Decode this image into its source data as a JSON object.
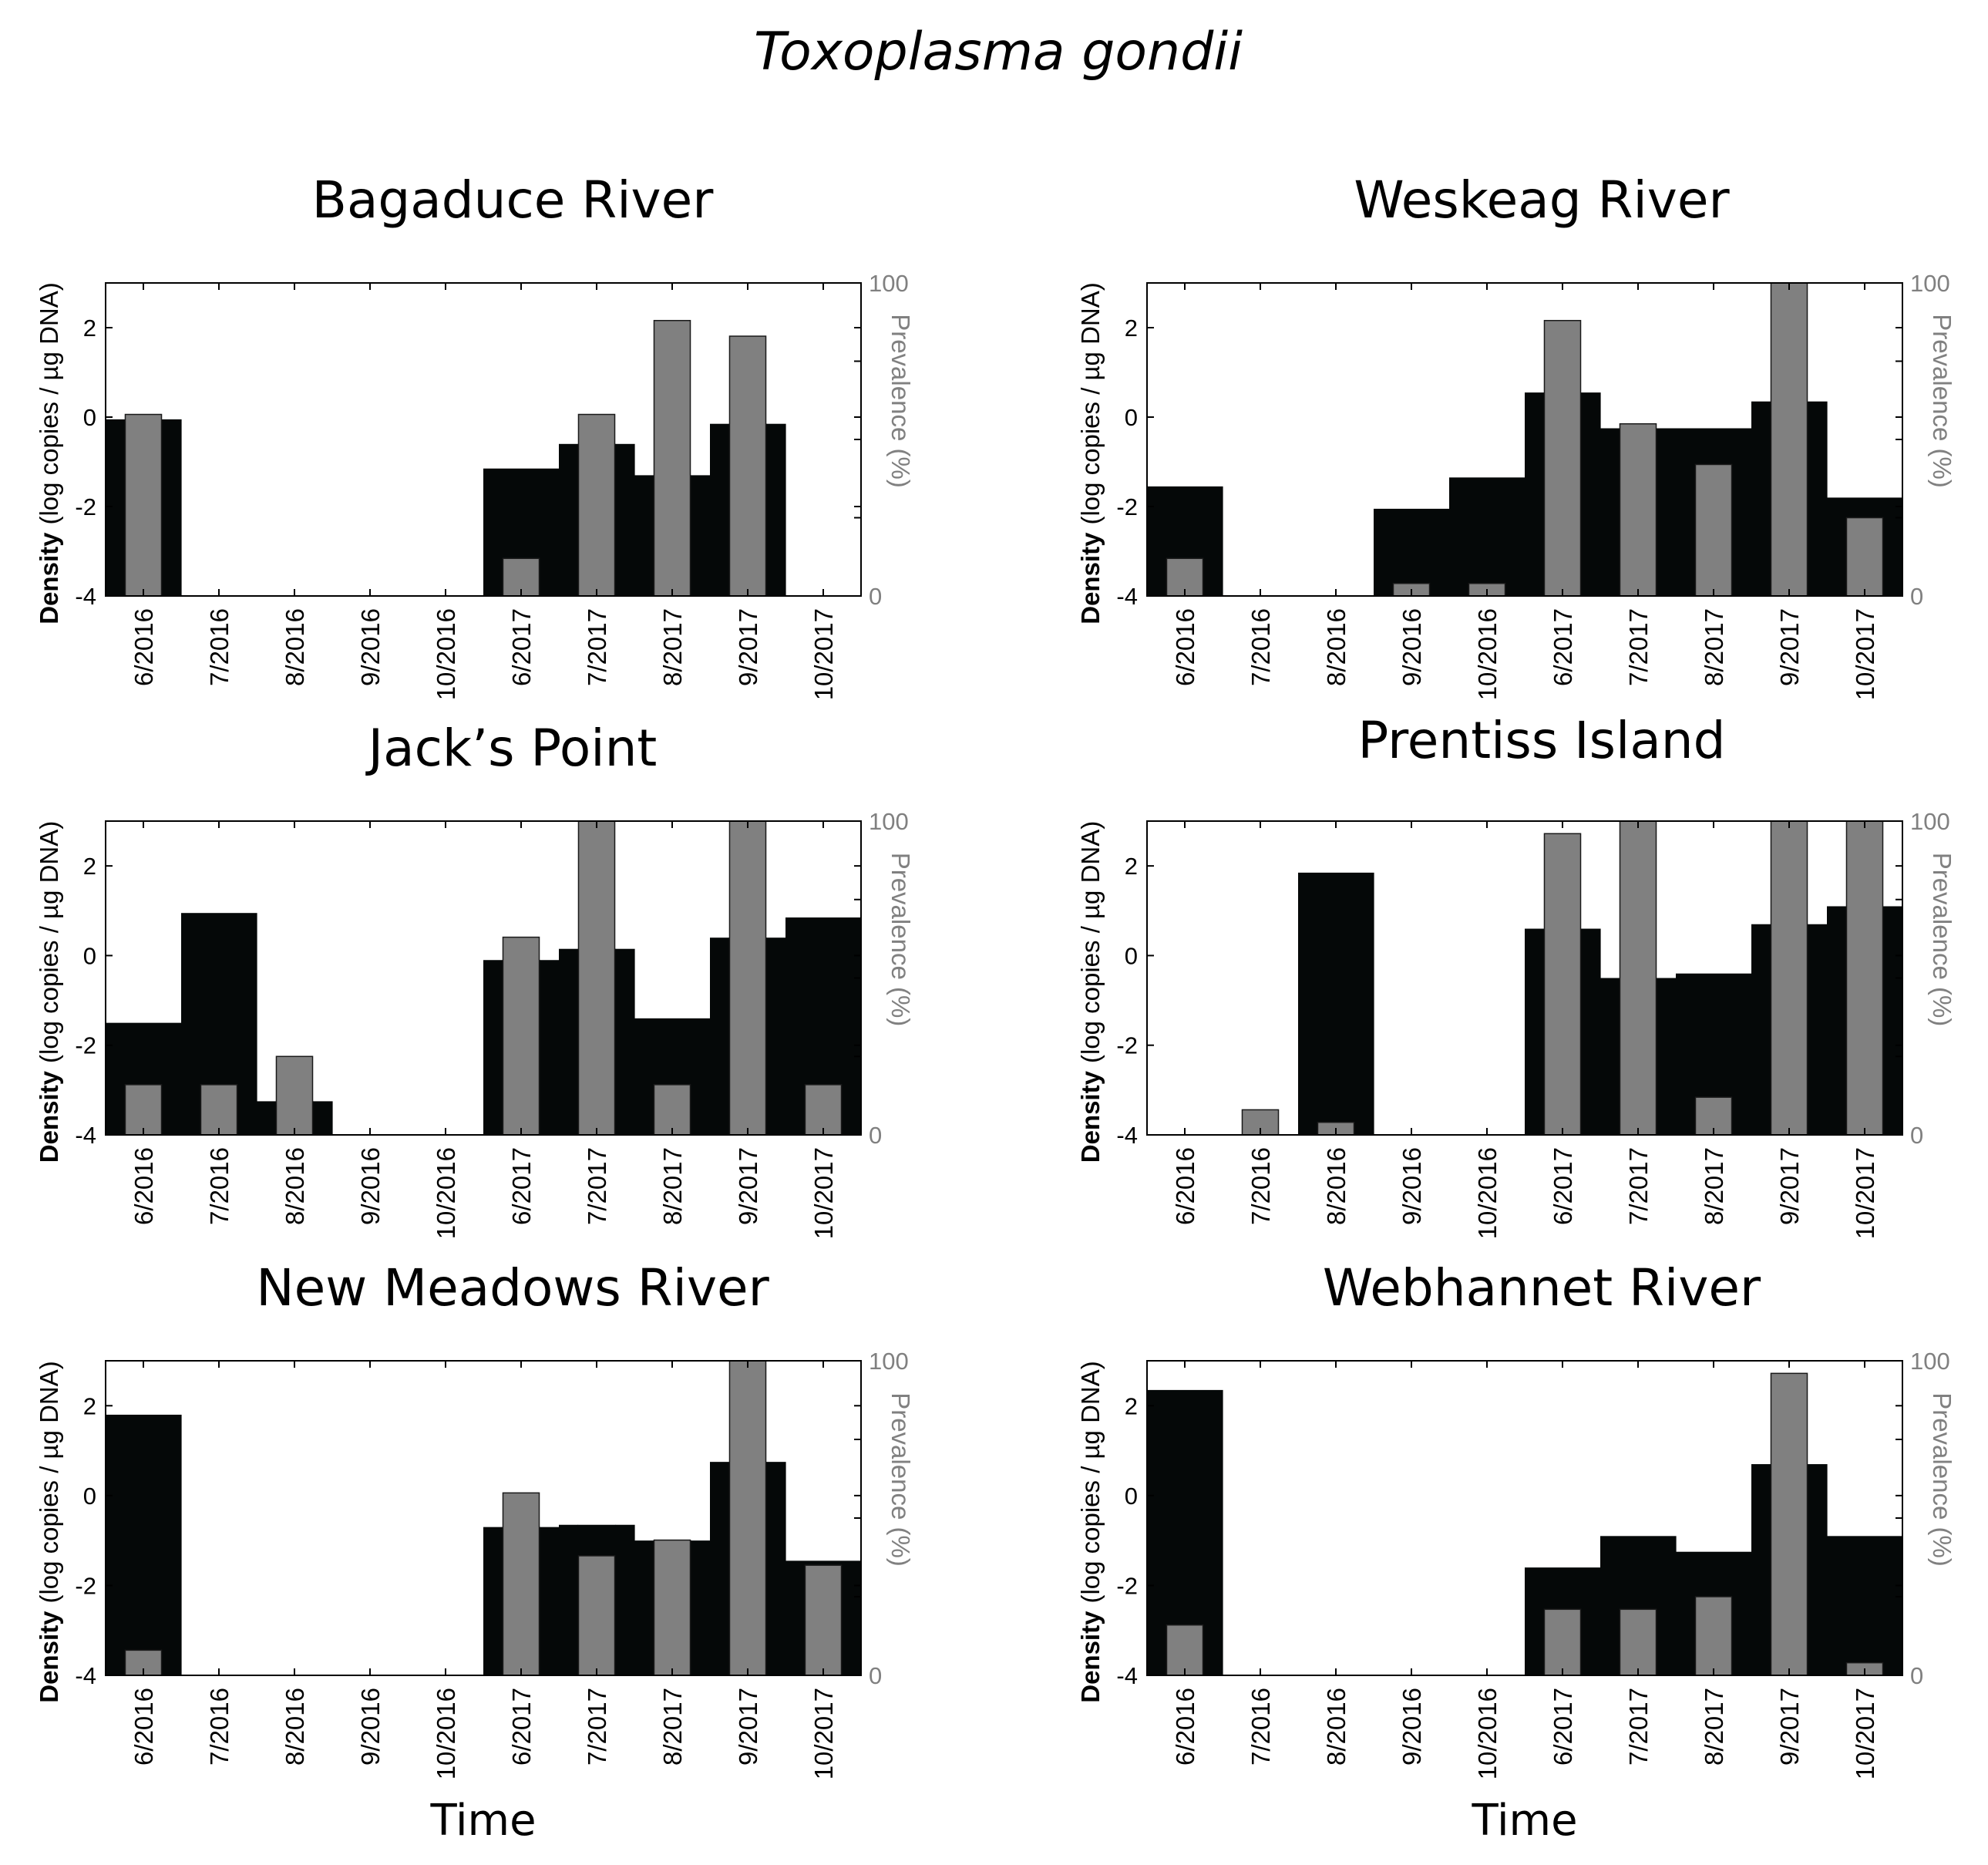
{
  "figure_title": "Toxoplasma gondii",
  "x_axis_label": "Time",
  "y_axis_label_bold": "Density",
  "y_axis_label_rest": "(log copies / µg DNA)",
  "y2_axis_label": "Prevalence (%)",
  "colors": {
    "density_bar": "#050808",
    "prevalence_bar": "#808080",
    "axis": "#000000",
    "secondary_axis_text": "#808080"
  },
  "chart_data": [
    {
      "type": "bar",
      "title": "Bagaduce River",
      "xlabel": "",
      "ylabel": "Density (log copies / µg DNA)",
      "y2label": "Prevalence (%)",
      "categories": [
        "6/2016",
        "7/2016",
        "8/2016",
        "9/2016",
        "10/2016",
        "6/2017",
        "7/2017",
        "8/2017",
        "9/2017",
        "10/2017"
      ],
      "ylim": [
        -4,
        3
      ],
      "y_ticks": [
        -4,
        -2,
        0,
        2
      ],
      "y2lim": [
        0,
        100
      ],
      "y2_ticks": [
        0,
        100
      ],
      "series": [
        {
          "name": "Density",
          "axis": "left",
          "x_start": [
            0.5,
            1.5,
            2.5,
            3.5,
            4.5,
            5.5,
            6.5,
            7.5,
            8.5,
            9.5
          ],
          "x_end": [
            1.5,
            2.5,
            3.5,
            4.5,
            5.5,
            6.5,
            7.5,
            8.5,
            9.5,
            10.5
          ],
          "values": [
            -0.05,
            null,
            null,
            null,
            null,
            -1.15,
            -0.6,
            -1.3,
            -0.15,
            null
          ],
          "step_change": [
            [
              1,
              -0.05
            ],
            [
              6,
              -1.15
            ],
            [
              7,
              -0.6
            ],
            [
              8,
              -1.3
            ],
            [
              9,
              -0.15
            ]
          ]
        },
        {
          "name": "Prevalence",
          "axis": "right",
          "x": [
            1,
            6,
            7,
            8,
            9
          ],
          "values": [
            58,
            12,
            58,
            88,
            83
          ]
        }
      ],
      "density_segments": [
        [
          0.5,
          1.0,
          -0.05
        ],
        [
          1.0,
          1.5,
          -0.05
        ],
        [
          5.5,
          6.5,
          -1.15
        ],
        [
          6.5,
          6.75,
          -0.6
        ],
        [
          6.75,
          7.25,
          -0.6
        ],
        [
          7.25,
          7.5,
          -0.6
        ],
        [
          7.5,
          7.75,
          -1.3
        ],
        [
          7.75,
          8.25,
          -1.3
        ],
        [
          8.25,
          8.5,
          -1.3
        ],
        [
          8.5,
          8.75,
          -0.15
        ],
        [
          8.75,
          9.25,
          -0.15
        ],
        [
          9.25,
          9.5,
          -0.15
        ]
      ]
    },
    {
      "type": "bar",
      "title": "Weskeag River",
      "xlabel": "",
      "ylabel": "Density (log copies / µg DNA)",
      "y2label": "Prevalence (%)",
      "categories": [
        "6/2016",
        "7/2016",
        "8/2016",
        "9/2016",
        "10/2016",
        "6/2017",
        "7/2017",
        "8/2017",
        "9/2017",
        "10/2017"
      ],
      "ylim": [
        -4,
        3
      ],
      "y_ticks": [
        -4,
        -2,
        0,
        2
      ],
      "y2lim": [
        0,
        100
      ],
      "y2_ticks": [
        0,
        100
      ],
      "series": [
        {
          "name": "Prevalence",
          "axis": "right",
          "x": [
            1,
            4,
            5,
            6,
            7,
            8,
            9,
            10
          ],
          "values": [
            12,
            4,
            4,
            88,
            55,
            42,
            100,
            25
          ]
        }
      ],
      "density_segments": [
        [
          0.5,
          1.5,
          -1.55
        ],
        [
          3.5,
          4.5,
          -2.05
        ],
        [
          4.5,
          5.5,
          -1.35
        ],
        [
          5.5,
          6.0,
          0.55
        ],
        [
          6.0,
          6.5,
          0.55
        ],
        [
          6.5,
          7.0,
          -0.25
        ],
        [
          7.0,
          7.5,
          -0.25
        ],
        [
          7.5,
          8.0,
          -0.25
        ],
        [
          8.0,
          8.5,
          -0.25
        ],
        [
          8.5,
          9.0,
          0.35
        ],
        [
          9.0,
          9.5,
          0.35
        ],
        [
          9.5,
          10.5,
          -1.8
        ]
      ]
    },
    {
      "type": "bar",
      "title": "Jack’s  Point",
      "xlabel": "",
      "ylabel": "Density (log copies / µg DNA)",
      "y2label": "Prevalence (%)",
      "categories": [
        "6/2016",
        "7/2016",
        "8/2016",
        "9/2016",
        "10/2016",
        "6/2017",
        "7/2017",
        "8/2017",
        "9/2017",
        "10/2017"
      ],
      "ylim": [
        -4,
        3
      ],
      "y_ticks": [
        -4,
        -2,
        0,
        2
      ],
      "y2lim": [
        0,
        100
      ],
      "y2_ticks": [
        0,
        100
      ],
      "series": [
        {
          "name": "Prevalence",
          "axis": "right",
          "x": [
            1,
            2,
            3,
            6,
            7,
            8,
            9,
            10
          ],
          "values": [
            16,
            16,
            25,
            63,
            100,
            16,
            100,
            16
          ]
        }
      ],
      "density_segments": [
        [
          0.5,
          1.5,
          -1.5
        ],
        [
          1.5,
          2.5,
          0.95
        ],
        [
          2.5,
          2.75,
          -3.25
        ],
        [
          2.75,
          3.25,
          -3.25
        ],
        [
          3.25,
          3.5,
          -3.25
        ],
        [
          5.5,
          5.75,
          -0.1
        ],
        [
          5.75,
          6.25,
          -0.1
        ],
        [
          6.25,
          6.5,
          -0.1
        ],
        [
          6.5,
          6.75,
          0.15
        ],
        [
          6.75,
          7.25,
          0.15
        ],
        [
          7.25,
          7.5,
          0.15
        ],
        [
          7.5,
          8.5,
          -1.4
        ],
        [
          8.5,
          8.75,
          0.4
        ],
        [
          8.75,
          9.25,
          0.4
        ],
        [
          9.25,
          9.5,
          0.4
        ],
        [
          9.5,
          10.5,
          0.85
        ]
      ]
    },
    {
      "type": "bar",
      "title": "Prentiss Island",
      "xlabel": "",
      "ylabel": "Density (log copies / µg DNA)",
      "y2label": "Prevalence (%)",
      "categories": [
        "6/2016",
        "7/2016",
        "8/2016",
        "9/2016",
        "10/2016",
        "6/2017",
        "7/2017",
        "8/2017",
        "9/2017",
        "10/2017"
      ],
      "ylim": [
        -4,
        3
      ],
      "y_ticks": [
        -4,
        -2,
        0,
        2
      ],
      "y2lim": [
        0,
        100
      ],
      "y2_ticks": [
        0,
        100
      ],
      "series": [
        {
          "name": "Prevalence",
          "axis": "right",
          "x": [
            2,
            3,
            6,
            7,
            8,
            9,
            10
          ],
          "values": [
            8,
            4,
            96,
            100,
            12,
            100,
            100
          ]
        }
      ],
      "density_segments": [
        [
          2.5,
          3.5,
          1.85
        ],
        [
          5.5,
          6.0,
          0.6
        ],
        [
          6.0,
          6.5,
          0.6
        ],
        [
          6.5,
          7.0,
          -0.5
        ],
        [
          7.0,
          7.5,
          -0.5
        ],
        [
          7.5,
          8.5,
          -0.4
        ],
        [
          8.5,
          9.0,
          0.7
        ],
        [
          9.0,
          9.5,
          0.7
        ],
        [
          9.5,
          10.0,
          1.1
        ],
        [
          10.0,
          10.5,
          1.1
        ]
      ]
    },
    {
      "type": "bar",
      "title": "New  Meadows River",
      "xlabel": "Time",
      "ylabel": "Density (log copies / µg DNA)",
      "y2label": "Prevalence (%)",
      "categories": [
        "6/2016",
        "7/2016",
        "8/2016",
        "9/2016",
        "10/2016",
        "6/2017",
        "7/2017",
        "8/2017",
        "9/2017",
        "10/2017"
      ],
      "ylim": [
        -4,
        3
      ],
      "y_ticks": [
        -4,
        -2,
        0,
        2
      ],
      "y2lim": [
        0,
        100
      ],
      "y2_ticks": [
        0,
        100
      ],
      "series": [
        {
          "name": "Prevalence",
          "axis": "right",
          "x": [
            1,
            6,
            7,
            8,
            9,
            10
          ],
          "values": [
            8,
            58,
            38,
            43,
            100,
            35
          ]
        }
      ],
      "density_segments": [
        [
          0.5,
          1.5,
          1.8
        ],
        [
          5.5,
          5.75,
          -0.7
        ],
        [
          5.75,
          6.25,
          -0.7
        ],
        [
          6.25,
          6.5,
          -0.7
        ],
        [
          6.5,
          6.75,
          -0.65
        ],
        [
          6.75,
          7.25,
          -0.65
        ],
        [
          7.25,
          7.5,
          -0.65
        ],
        [
          7.5,
          7.75,
          -1.0
        ],
        [
          7.75,
          8.25,
          -1.0
        ],
        [
          8.25,
          8.5,
          -1.0
        ],
        [
          8.5,
          8.75,
          0.75
        ],
        [
          8.75,
          9.25,
          0.75
        ],
        [
          9.25,
          9.5,
          0.75
        ],
        [
          9.5,
          10.5,
          -1.45
        ]
      ]
    },
    {
      "type": "bar",
      "title": "Webhannet River",
      "xlabel": "Time",
      "ylabel": "Density (log copies / µg DNA)",
      "y2label": "Prevalence (%)",
      "categories": [
        "6/2016",
        "7/2016",
        "8/2016",
        "9/2016",
        "10/2016",
        "6/2017",
        "7/2017",
        "8/2017",
        "9/2017",
        "10/2017"
      ],
      "ylim": [
        -4,
        3
      ],
      "y_ticks": [
        -4,
        -2,
        0,
        2
      ],
      "y2lim": [
        0,
        100
      ],
      "y2_ticks": [
        0,
        100
      ],
      "series": [
        {
          "name": "Prevalence",
          "axis": "right",
          "x": [
            1,
            6,
            7,
            8,
            9,
            10
          ],
          "values": [
            16,
            21,
            21,
            25,
            96,
            4
          ]
        }
      ],
      "density_segments": [
        [
          0.5,
          1.5,
          2.35
        ],
        [
          5.5,
          6.5,
          -1.6
        ],
        [
          6.5,
          7.5,
          -0.9
        ],
        [
          7.5,
          8.5,
          -1.25
        ],
        [
          8.5,
          9.0,
          0.7
        ],
        [
          9.0,
          9.5,
          0.7
        ],
        [
          9.5,
          10.5,
          -0.9
        ]
      ]
    }
  ]
}
